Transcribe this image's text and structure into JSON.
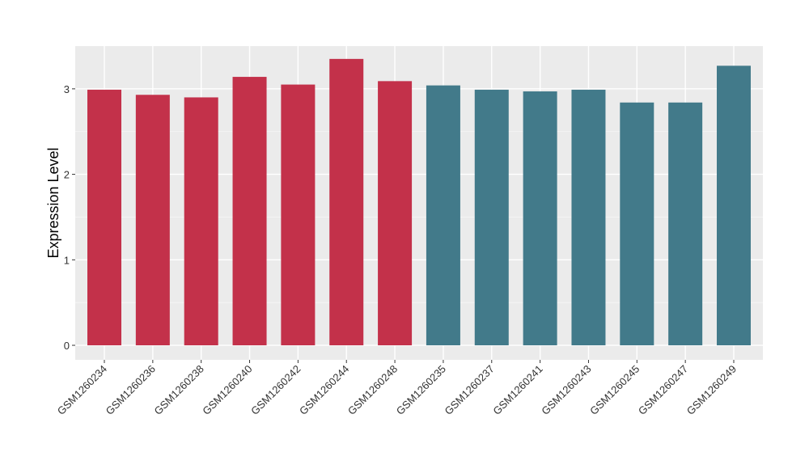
{
  "chart_data": {
    "type": "bar",
    "title": "",
    "xlabel": "",
    "ylabel": "Expression Level",
    "ylim": [
      -0.17,
      3.5
    ],
    "yticks": [
      0,
      1,
      2,
      3
    ],
    "grid": true,
    "legend": "none",
    "group_colors": {
      "group1": "#C3314A",
      "group2": "#427A8A"
    },
    "categories": [
      "GSM1260234",
      "GSM1260236",
      "GSM1260238",
      "GSM1260240",
      "GSM1260242",
      "GSM1260244",
      "GSM1260248",
      "GSM1260235",
      "GSM1260237",
      "GSM1260241",
      "GSM1260243",
      "GSM1260245",
      "GSM1260247",
      "GSM1260249"
    ],
    "values": [
      2.99,
      2.93,
      2.9,
      3.14,
      3.05,
      3.35,
      3.09,
      3.04,
      2.99,
      2.97,
      2.99,
      2.84,
      2.84,
      3.27
    ],
    "groups": [
      "group1",
      "group1",
      "group1",
      "group1",
      "group1",
      "group1",
      "group1",
      "group2",
      "group2",
      "group2",
      "group2",
      "group2",
      "group2",
      "group2"
    ]
  }
}
